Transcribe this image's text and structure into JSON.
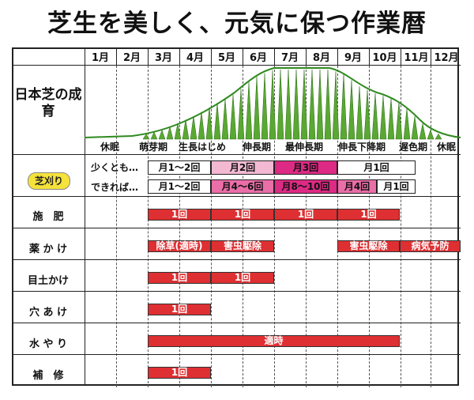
{
  "title": "芝生を美しく、元気に保つ作業暦",
  "months": [
    "1月",
    "2月",
    "3月",
    "4月",
    "5月",
    "6月",
    "7月",
    "8月",
    "9月",
    "10月",
    "11月",
    "12月"
  ],
  "growth": {
    "label": "日本芝の成育",
    "stages": [
      "休眠",
      "萌芽期",
      "生長はじめ",
      "伸長期",
      "最伸長期",
      "伸長下降期",
      "遅色期",
      "休眠"
    ],
    "curve_color": "#2f8a1f",
    "spike_color": "#5aa832"
  },
  "mowing": {
    "label": "芝刈り",
    "minimum_label": "少くとも…",
    "preferred_label": "できれば…",
    "minimum": [
      "月1〜2回",
      "月2回",
      "月3回",
      "月1回"
    ],
    "preferred": [
      "月1〜2回",
      "月4〜6回",
      "月8〜10回",
      "月4回",
      "月1回"
    ]
  },
  "tasks": [
    {
      "label": "施　肥",
      "items": [
        "1回",
        "1回",
        "1回",
        "1回"
      ]
    },
    {
      "label": "薬 か け",
      "items": [
        "除草(適時)",
        "害虫駆除",
        "害虫駆除",
        "病気予防"
      ]
    },
    {
      "label": "目土かけ",
      "items": [
        "1回",
        "1回"
      ]
    },
    {
      "label": "穴 あ け",
      "items": [
        "1回"
      ]
    },
    {
      "label": "水 や り",
      "items": [
        "適時"
      ]
    },
    {
      "label": "補　修",
      "items": [
        "1回"
      ]
    }
  ],
  "colors": {
    "bar": "#de2f32",
    "pink_light": "#f3b9d3",
    "pink": "#ea6ea8",
    "magenta": "#dd2a84",
    "badge": "#f5e23a"
  }
}
